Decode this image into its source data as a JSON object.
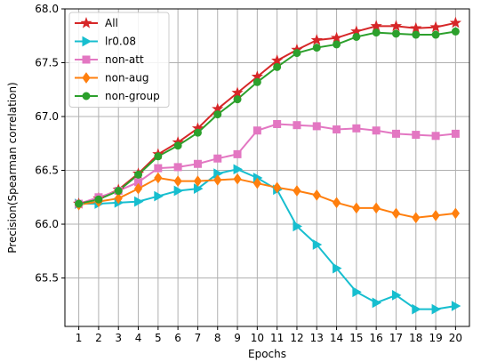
{
  "chart_data": {
    "type": "line",
    "xlabel": "Epochs",
    "ylabel": "Precision(Spearman correlation)",
    "x": [
      1,
      2,
      3,
      4,
      5,
      6,
      7,
      8,
      9,
      10,
      11,
      12,
      13,
      14,
      15,
      16,
      17,
      18,
      19,
      20
    ],
    "xlim": [
      0.3,
      20.7
    ],
    "ylim": [
      65.05,
      68.0
    ],
    "yticks": [
      65.5,
      66.0,
      66.5,
      67.0,
      67.5,
      68.0
    ],
    "grid": true,
    "legend_position": "upper-left",
    "series": [
      {
        "name": "All",
        "color": "#d62728",
        "marker": "star",
        "values": [
          66.19,
          66.24,
          66.32,
          66.47,
          66.65,
          66.76,
          66.89,
          67.07,
          67.22,
          67.37,
          67.52,
          67.62,
          67.71,
          67.73,
          67.79,
          67.84,
          67.84,
          67.82,
          67.83,
          67.87
        ]
      },
      {
        "name": "lr0.08",
        "color": "#17becf",
        "marker": "triangle-right",
        "values": [
          66.19,
          66.19,
          66.2,
          66.21,
          66.26,
          66.31,
          66.33,
          66.47,
          66.51,
          66.43,
          66.32,
          65.98,
          65.81,
          65.59,
          65.37,
          65.27,
          65.34,
          65.21,
          65.21,
          65.24
        ]
      },
      {
        "name": "non-att",
        "color": "#e377c2",
        "marker": "square",
        "values": [
          66.19,
          66.25,
          66.31,
          66.39,
          66.52,
          66.53,
          66.56,
          66.61,
          66.65,
          66.87,
          66.93,
          66.92,
          66.91,
          66.88,
          66.89,
          66.87,
          66.84,
          66.83,
          66.82,
          66.84
        ]
      },
      {
        "name": "non-aug",
        "color": "#ff7f0e",
        "marker": "diamond",
        "values": [
          66.18,
          66.21,
          66.24,
          66.33,
          66.43,
          66.4,
          66.4,
          66.41,
          66.42,
          66.38,
          66.34,
          66.31,
          66.27,
          66.2,
          66.15,
          66.15,
          66.1,
          66.06,
          66.08,
          66.1
        ]
      },
      {
        "name": "non-group",
        "color": "#2ca02c",
        "marker": "circle",
        "values": [
          66.19,
          66.23,
          66.31,
          66.46,
          66.63,
          66.73,
          66.85,
          67.02,
          67.16,
          67.32,
          67.46,
          67.59,
          67.64,
          67.67,
          67.74,
          67.78,
          67.77,
          67.76,
          67.76,
          67.79
        ]
      }
    ]
  }
}
